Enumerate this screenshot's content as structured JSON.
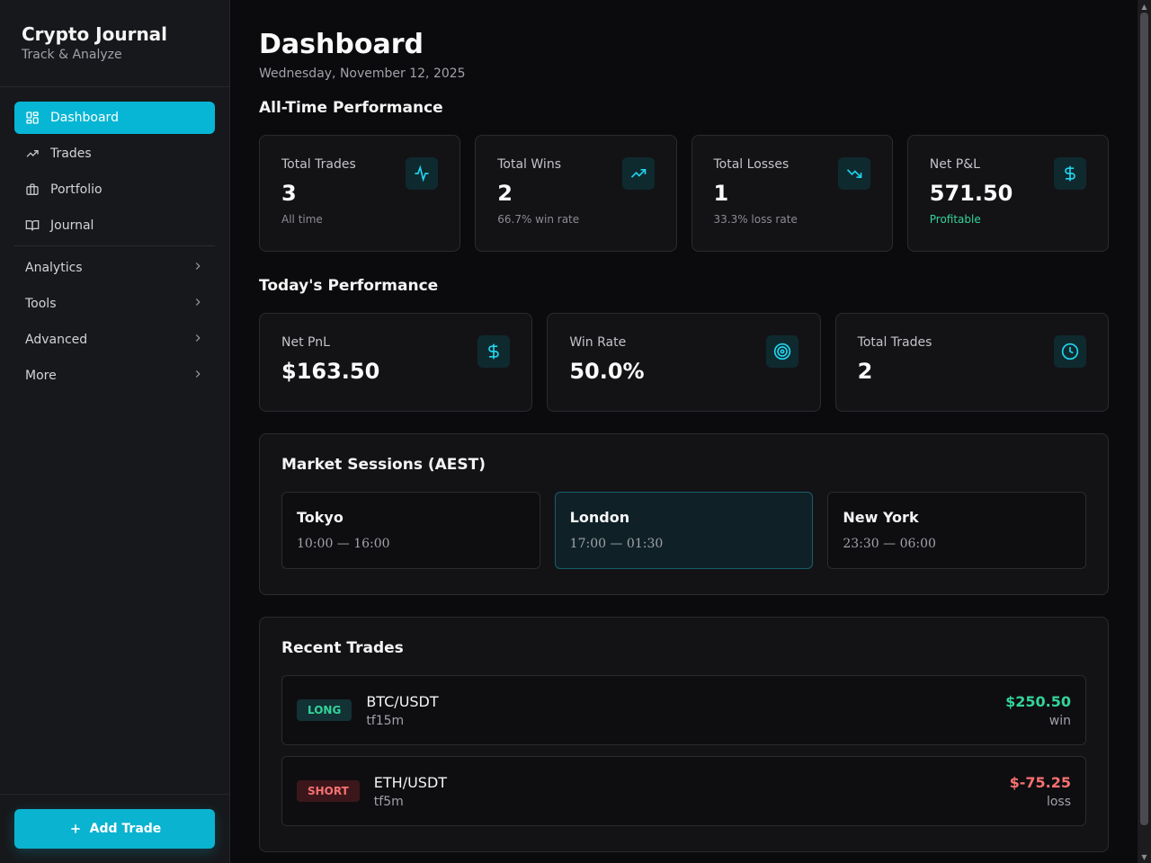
{
  "app": {
    "title": "Crypto Journal",
    "subtitle": "Track & Analyze"
  },
  "sidebar": {
    "items": [
      {
        "label": "Dashboard",
        "icon": "dashboard-icon",
        "active": true
      },
      {
        "label": "Trades",
        "icon": "trending-up-icon"
      },
      {
        "label": "Portfolio",
        "icon": "briefcase-icon"
      },
      {
        "label": "Journal",
        "icon": "book-icon"
      }
    ],
    "groups": [
      {
        "label": "Analytics"
      },
      {
        "label": "Tools"
      },
      {
        "label": "Advanced"
      },
      {
        "label": "More"
      }
    ],
    "add_trade_label": "Add Trade"
  },
  "header": {
    "title": "Dashboard",
    "date": "Wednesday, November 12, 2025"
  },
  "all_time": {
    "title": "All-Time Performance",
    "cards": [
      {
        "label": "Total Trades",
        "value": "3",
        "sub": "All time",
        "icon": "activity-icon"
      },
      {
        "label": "Total Wins",
        "value": "2",
        "sub": "66.7% win rate",
        "icon": "trending-up-icon"
      },
      {
        "label": "Total Losses",
        "value": "1",
        "sub": "33.3% loss rate",
        "icon": "trending-down-icon"
      },
      {
        "label": "Net P&L",
        "value": "571.50",
        "sub": "Profitable",
        "icon": "dollar-icon"
      }
    ]
  },
  "today": {
    "title": "Today's Performance",
    "cards": [
      {
        "label": "Net PnL",
        "value": "$163.50",
        "icon": "dollar-icon"
      },
      {
        "label": "Win Rate",
        "value": "50.0%",
        "icon": "target-icon"
      },
      {
        "label": "Total Trades",
        "value": "2",
        "icon": "clock-icon"
      }
    ]
  },
  "sessions": {
    "title": "Market Sessions (AEST)",
    "items": [
      {
        "name": "Tokyo",
        "time": "10:00 — 16:00",
        "active": false
      },
      {
        "name": "London",
        "time": "17:00 — 01:30",
        "active": true
      },
      {
        "name": "New York",
        "time": "23:30 — 06:00",
        "active": false
      }
    ]
  },
  "recent_trades": {
    "title": "Recent Trades",
    "items": [
      {
        "side": "LONG",
        "pair": "BTC/USDT",
        "timeframe": "tf15m",
        "pnl": "$250.50",
        "result": "win"
      },
      {
        "side": "SHORT",
        "pair": "ETH/USDT",
        "timeframe": "tf5m",
        "pnl": "$-75.25",
        "result": "loss"
      }
    ]
  },
  "colors": {
    "accent": "#06b6d4",
    "positive": "#34d399",
    "negative": "#f87171",
    "background": "#0b0b0d"
  }
}
